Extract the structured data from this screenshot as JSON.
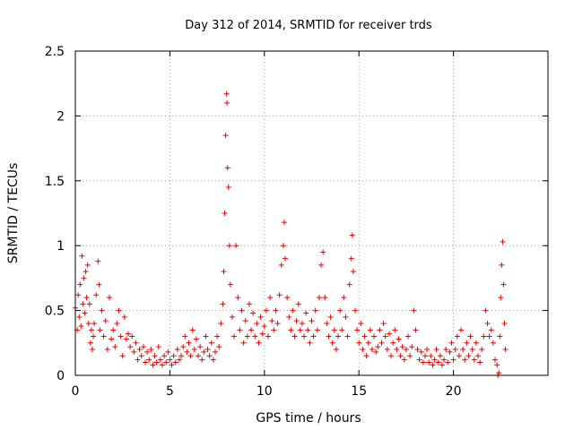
{
  "chart_data": {
    "type": "scatter",
    "title": "Day 312 of 2014, SRMTID for receiver trds",
    "xlabel": "GPS time / hours",
    "ylabel": "SRMTID / TECUs",
    "xlim": [
      0,
      25
    ],
    "ylim": [
      0,
      2.5
    ],
    "xticks": [
      0,
      5,
      10,
      15,
      20
    ],
    "yticks": [
      0,
      0.5,
      1,
      1.5,
      2,
      2.5
    ],
    "xtick_labels": [
      "0",
      "5",
      "10",
      "15",
      "20"
    ],
    "ytick_labels": [
      "0",
      "0.5",
      "1",
      "1.5",
      "2",
      "2.5"
    ],
    "grid": true,
    "marker": "plus",
    "color": "#ee0000",
    "series": [
      {
        "name": "SRMTID",
        "points": [
          [
            0.0,
            0.52
          ],
          [
            0.1,
            0.35
          ],
          [
            0.15,
            0.62
          ],
          [
            0.2,
            0.45
          ],
          [
            0.25,
            0.7
          ],
          [
            0.3,
            0.38
          ],
          [
            0.35,
            0.92
          ],
          [
            0.4,
            0.55
          ],
          [
            0.45,
            0.75
          ],
          [
            0.5,
            0.48
          ],
          [
            0.55,
            0.8
          ],
          [
            0.6,
            0.6
          ],
          [
            0.65,
            0.85
          ],
          [
            0.7,
            0.4
          ],
          [
            0.75,
            0.55
          ],
          [
            0.8,
            0.25
          ],
          [
            0.85,
            0.35
          ],
          [
            0.9,
            0.2
          ],
          [
            0.95,
            0.3
          ],
          [
            1.0,
            0.4
          ],
          [
            1.1,
            0.62
          ],
          [
            1.2,
            0.88
          ],
          [
            1.25,
            0.7
          ],
          [
            1.3,
            0.35
          ],
          [
            1.4,
            0.5
          ],
          [
            1.5,
            0.3
          ],
          [
            1.6,
            0.42
          ],
          [
            1.7,
            0.2
          ],
          [
            1.8,
            0.6
          ],
          [
            1.9,
            0.28
          ],
          [
            2.0,
            0.35
          ],
          [
            2.1,
            0.22
          ],
          [
            2.2,
            0.4
          ],
          [
            2.3,
            0.5
          ],
          [
            2.4,
            0.3
          ],
          [
            2.5,
            0.15
          ],
          [
            2.6,
            0.45
          ],
          [
            2.7,
            0.28
          ],
          [
            2.8,
            0.32
          ],
          [
            2.9,
            0.22
          ],
          [
            3.0,
            0.3
          ],
          [
            3.1,
            0.18
          ],
          [
            3.2,
            0.25
          ],
          [
            3.3,
            0.12
          ],
          [
            3.4,
            0.2
          ],
          [
            3.5,
            0.15
          ],
          [
            3.6,
            0.22
          ],
          [
            3.7,
            0.1
          ],
          [
            3.8,
            0.18
          ],
          [
            3.9,
            0.12
          ],
          [
            4.0,
            0.2
          ],
          [
            4.1,
            0.08
          ],
          [
            4.2,
            0.15
          ],
          [
            4.3,
            0.1
          ],
          [
            4.4,
            0.22
          ],
          [
            4.5,
            0.12
          ],
          [
            4.6,
            0.08
          ],
          [
            4.7,
            0.15
          ],
          [
            4.8,
            0.1
          ],
          [
            4.9,
            0.18
          ],
          [
            5.0,
            0.12
          ],
          [
            5.1,
            0.08
          ],
          [
            5.2,
            0.15
          ],
          [
            5.3,
            0.1
          ],
          [
            5.4,
            0.2
          ],
          [
            5.5,
            0.12
          ],
          [
            5.6,
            0.15
          ],
          [
            5.7,
            0.22
          ],
          [
            5.8,
            0.3
          ],
          [
            5.9,
            0.18
          ],
          [
            6.0,
            0.25
          ],
          [
            6.1,
            0.15
          ],
          [
            6.2,
            0.35
          ],
          [
            6.3,
            0.2
          ],
          [
            6.4,
            0.28
          ],
          [
            6.5,
            0.15
          ],
          [
            6.6,
            0.22
          ],
          [
            6.7,
            0.12
          ],
          [
            6.8,
            0.18
          ],
          [
            6.9,
            0.3
          ],
          [
            7.0,
            0.2
          ],
          [
            7.1,
            0.15
          ],
          [
            7.2,
            0.25
          ],
          [
            7.3,
            0.12
          ],
          [
            7.4,
            0.18
          ],
          [
            7.5,
            0.3
          ],
          [
            7.6,
            0.22
          ],
          [
            7.7,
            0.4
          ],
          [
            7.8,
            0.55
          ],
          [
            7.85,
            0.8
          ],
          [
            7.9,
            1.25
          ],
          [
            7.95,
            1.85
          ],
          [
            8.0,
            2.17
          ],
          [
            8.02,
            2.1
          ],
          [
            8.05,
            1.6
          ],
          [
            8.1,
            1.45
          ],
          [
            8.15,
            1.0
          ],
          [
            8.2,
            0.7
          ],
          [
            8.3,
            0.45
          ],
          [
            8.4,
            0.3
          ],
          [
            8.5,
            1.0
          ],
          [
            8.6,
            0.6
          ],
          [
            8.7,
            0.35
          ],
          [
            8.8,
            0.5
          ],
          [
            8.9,
            0.25
          ],
          [
            9.0,
            0.42
          ],
          [
            9.1,
            0.3
          ],
          [
            9.2,
            0.55
          ],
          [
            9.3,
            0.35
          ],
          [
            9.4,
            0.48
          ],
          [
            9.5,
            0.3
          ],
          [
            9.6,
            0.4
          ],
          [
            9.7,
            0.25
          ],
          [
            9.8,
            0.45
          ],
          [
            9.9,
            0.32
          ],
          [
            10.0,
            0.38
          ],
          [
            10.1,
            0.5
          ],
          [
            10.2,
            0.3
          ],
          [
            10.3,
            0.6
          ],
          [
            10.4,
            0.42
          ],
          [
            10.5,
            0.35
          ],
          [
            10.6,
            0.5
          ],
          [
            10.7,
            0.4
          ],
          [
            10.8,
            0.62
          ],
          [
            10.9,
            0.85
          ],
          [
            11.0,
            1.0
          ],
          [
            11.05,
            1.18
          ],
          [
            11.1,
            0.9
          ],
          [
            11.2,
            0.6
          ],
          [
            11.3,
            0.45
          ],
          [
            11.4,
            0.35
          ],
          [
            11.5,
            0.5
          ],
          [
            11.6,
            0.3
          ],
          [
            11.7,
            0.42
          ],
          [
            11.8,
            0.55
          ],
          [
            11.9,
            0.35
          ],
          [
            12.0,
            0.4
          ],
          [
            12.1,
            0.3
          ],
          [
            12.2,
            0.48
          ],
          [
            12.3,
            0.35
          ],
          [
            12.4,
            0.25
          ],
          [
            12.5,
            0.42
          ],
          [
            12.6,
            0.3
          ],
          [
            12.7,
            0.5
          ],
          [
            12.8,
            0.35
          ],
          [
            12.9,
            0.6
          ],
          [
            13.0,
            0.85
          ],
          [
            13.1,
            0.95
          ],
          [
            13.2,
            0.6
          ],
          [
            13.3,
            0.4
          ],
          [
            13.4,
            0.3
          ],
          [
            13.5,
            0.45
          ],
          [
            13.6,
            0.25
          ],
          [
            13.7,
            0.35
          ],
          [
            13.8,
            0.2
          ],
          [
            13.9,
            0.3
          ],
          [
            14.0,
            0.5
          ],
          [
            14.1,
            0.35
          ],
          [
            14.2,
            0.6
          ],
          [
            14.3,
            0.45
          ],
          [
            14.4,
            0.3
          ],
          [
            14.5,
            0.7
          ],
          [
            14.6,
            0.9
          ],
          [
            14.65,
            1.08
          ],
          [
            14.7,
            0.8
          ],
          [
            14.8,
            0.5
          ],
          [
            14.9,
            0.35
          ],
          [
            15.0,
            0.25
          ],
          [
            15.1,
            0.4
          ],
          [
            15.2,
            0.2
          ],
          [
            15.3,
            0.3
          ],
          [
            15.4,
            0.15
          ],
          [
            15.5,
            0.25
          ],
          [
            15.6,
            0.35
          ],
          [
            15.7,
            0.2
          ],
          [
            15.8,
            0.3
          ],
          [
            15.9,
            0.18
          ],
          [
            16.0,
            0.22
          ],
          [
            16.1,
            0.35
          ],
          [
            16.2,
            0.25
          ],
          [
            16.3,
            0.4
          ],
          [
            16.4,
            0.3
          ],
          [
            16.5,
            0.2
          ],
          [
            16.6,
            0.32
          ],
          [
            16.7,
            0.15
          ],
          [
            16.8,
            0.25
          ],
          [
            16.9,
            0.35
          ],
          [
            17.0,
            0.2
          ],
          [
            17.1,
            0.28
          ],
          [
            17.2,
            0.15
          ],
          [
            17.3,
            0.22
          ],
          [
            17.4,
            0.12
          ],
          [
            17.5,
            0.2
          ],
          [
            17.6,
            0.3
          ],
          [
            17.7,
            0.15
          ],
          [
            17.8,
            0.22
          ],
          [
            17.9,
            0.5
          ],
          [
            18.0,
            0.35
          ],
          [
            18.1,
            0.2
          ],
          [
            18.2,
            0.12
          ],
          [
            18.3,
            0.18
          ],
          [
            18.4,
            0.1
          ],
          [
            18.5,
            0.15
          ],
          [
            18.6,
            0.2
          ],
          [
            18.7,
            0.1
          ],
          [
            18.8,
            0.15
          ],
          [
            18.9,
            0.08
          ],
          [
            19.0,
            0.12
          ],
          [
            19.1,
            0.2
          ],
          [
            19.2,
            0.1
          ],
          [
            19.3,
            0.15
          ],
          [
            19.4,
            0.08
          ],
          [
            19.5,
            0.12
          ],
          [
            19.6,
            0.2
          ],
          [
            19.7,
            0.1
          ],
          [
            19.8,
            0.18
          ],
          [
            19.9,
            0.25
          ],
          [
            20.0,
            0.12
          ],
          [
            20.1,
            0.2
          ],
          [
            20.2,
            0.3
          ],
          [
            20.3,
            0.15
          ],
          [
            20.4,
            0.35
          ],
          [
            20.5,
            0.2
          ],
          [
            20.6,
            0.12
          ],
          [
            20.7,
            0.25
          ],
          [
            20.8,
            0.15
          ],
          [
            20.9,
            0.3
          ],
          [
            21.0,
            0.2
          ],
          [
            21.1,
            0.12
          ],
          [
            21.2,
            0.25
          ],
          [
            21.3,
            0.15
          ],
          [
            21.4,
            0.1
          ],
          [
            21.5,
            0.2
          ],
          [
            21.6,
            0.3
          ],
          [
            21.7,
            0.5
          ],
          [
            21.8,
            0.4
          ],
          [
            21.9,
            0.3
          ],
          [
            22.0,
            0.35
          ],
          [
            22.1,
            0.25
          ],
          [
            22.2,
            0.12
          ],
          [
            22.3,
            0.08
          ],
          [
            22.35,
            0.0
          ],
          [
            22.4,
            0.02
          ],
          [
            22.45,
            0.3
          ],
          [
            22.5,
            0.6
          ],
          [
            22.55,
            0.85
          ],
          [
            22.6,
            1.03
          ],
          [
            22.65,
            0.7
          ],
          [
            22.7,
            0.4
          ],
          [
            22.75,
            0.2
          ]
        ]
      }
    ]
  }
}
